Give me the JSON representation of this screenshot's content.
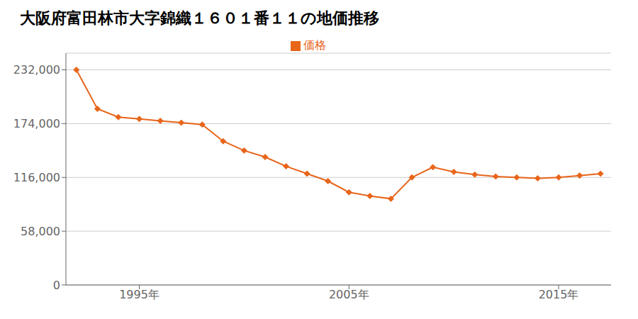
{
  "chart_data": {
    "type": "line",
    "title": "大阪府富田林市大字錦織１６０１番１１の地価推移",
    "x": [
      1992,
      1993,
      1994,
      1995,
      1996,
      1997,
      1998,
      1999,
      2000,
      2001,
      2002,
      2003,
      2004,
      2005,
      2006,
      2007,
      2008,
      2009,
      2010,
      2011,
      2012,
      2013,
      2014,
      2015,
      2016,
      2017
    ],
    "series": [
      {
        "name": "価格",
        "color": "#E8651A",
        "marker": "diamond",
        "values": [
          232000,
          190000,
          181000,
          179000,
          177000,
          175000,
          173000,
          155000,
          145000,
          138000,
          128000,
          120000,
          112000,
          100000,
          96000,
          93000,
          116000,
          127000,
          122000,
          119000,
          117000,
          116000,
          115000,
          116000,
          118000,
          120000
        ]
      }
    ],
    "xlim": [
      1991.5,
      2017.5
    ],
    "xticks": [
      {
        "value": 1995,
        "label": "1995年"
      },
      {
        "value": 2005,
        "label": "2005年"
      },
      {
        "value": 2015,
        "label": "2015年"
      }
    ],
    "ylim": [
      0,
      250000
    ],
    "yticks": [
      0,
      {
        "value": 58000,
        "label": "58,000"
      },
      {
        "value": 116000,
        "label": "116,000"
      },
      {
        "value": 174000,
        "label": "174,000"
      },
      {
        "value": 232000,
        "label": "232,000"
      }
    ],
    "grid": true,
    "legend": "top"
  }
}
